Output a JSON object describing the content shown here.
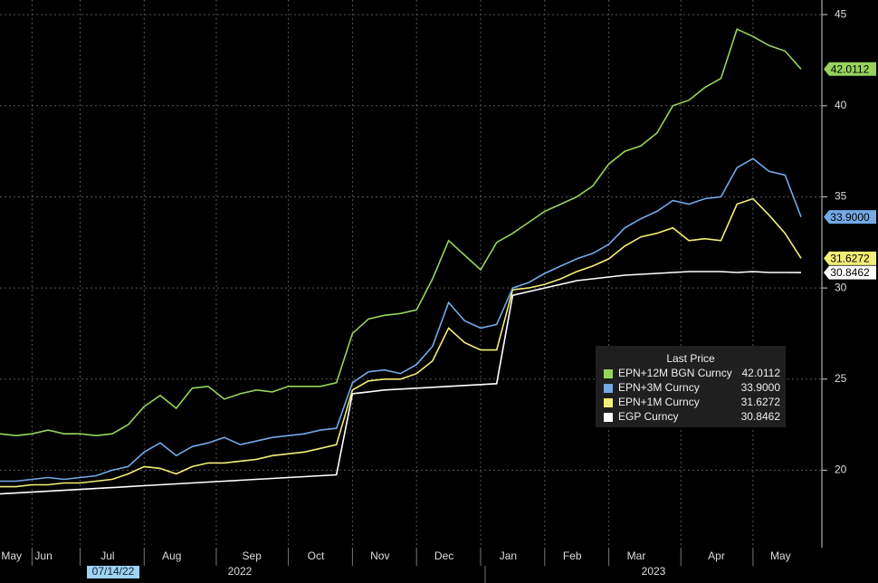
{
  "chart_data": {
    "type": "line",
    "categories": [
      null,
      "May",
      null,
      "Jun",
      null,
      null,
      null,
      "Jul",
      null,
      null,
      null,
      "Aug",
      null,
      null,
      null,
      null,
      "Sep",
      null,
      null,
      null,
      "Oct",
      null,
      null,
      null,
      "Nov",
      null,
      null,
      null,
      "Dec",
      null,
      null,
      null,
      "Jan",
      null,
      null,
      null,
      "Feb",
      null,
      null,
      null,
      "Mar",
      null,
      null,
      null,
      null,
      "Apr",
      null,
      null,
      null,
      "May",
      null
    ],
    "years": [
      "2022",
      "2023"
    ],
    "cursor_label": "07/14/22",
    "series": [
      {
        "name": "EPN+12M BGN Curncy",
        "color": "#97d35c",
        "last_label": "42.0112",
        "values": [
          22.0,
          21.9,
          22.0,
          22.2,
          22.0,
          22.0,
          21.9,
          22.0,
          22.5,
          23.5,
          24.1,
          23.4,
          24.5,
          24.6,
          23.9,
          24.2,
          24.4,
          24.3,
          24.6,
          24.6,
          24.6,
          24.8,
          27.5,
          28.3,
          28.5,
          28.6,
          28.8,
          30.5,
          32.6,
          31.8,
          31.0,
          32.5,
          33.0,
          33.6,
          34.2,
          34.6,
          35.0,
          35.6,
          36.8,
          37.5,
          37.8,
          38.5,
          40.0,
          40.3,
          41.0,
          41.5,
          44.2,
          43.8,
          43.3,
          43.0,
          42.0112
        ]
      },
      {
        "name": "EPN+3M Curncy",
        "color": "#74a9e6",
        "last_label": "33.9000",
        "values": [
          19.4,
          19.4,
          19.5,
          19.6,
          19.5,
          19.6,
          19.7,
          20.0,
          20.2,
          21.0,
          21.5,
          20.8,
          21.3,
          21.5,
          21.8,
          21.4,
          21.6,
          21.8,
          21.9,
          22.0,
          22.2,
          22.3,
          24.8,
          25.4,
          25.5,
          25.3,
          25.8,
          26.8,
          29.2,
          28.2,
          27.8,
          28.0,
          30.0,
          30.3,
          30.8,
          31.2,
          31.6,
          31.9,
          32.4,
          33.3,
          33.8,
          34.2,
          34.8,
          34.6,
          34.9,
          35.0,
          36.6,
          37.1,
          36.4,
          36.2,
          33.9
        ]
      },
      {
        "name": "EPN+1M Curncy",
        "color": "#f4ee78",
        "last_label": "31.6272",
        "values": [
          19.1,
          19.1,
          19.2,
          19.2,
          19.3,
          19.3,
          19.4,
          19.5,
          19.8,
          20.2,
          20.1,
          19.8,
          20.2,
          20.4,
          20.4,
          20.5,
          20.6,
          20.8,
          20.9,
          21.0,
          21.2,
          21.4,
          24.4,
          24.9,
          25.0,
          25.0,
          25.3,
          26.0,
          27.8,
          27.0,
          26.6,
          26.6,
          29.9,
          30.0,
          30.2,
          30.5,
          30.9,
          31.2,
          31.6,
          32.3,
          32.8,
          33.0,
          33.3,
          32.6,
          32.7,
          32.6,
          34.6,
          34.9,
          34.0,
          33.0,
          31.6272
        ]
      },
      {
        "name": "EGP Curncy",
        "color": "#ffffff",
        "last_label": "30.8462",
        "values": [
          18.7,
          18.75,
          18.8,
          18.85,
          18.9,
          18.95,
          19.0,
          19.05,
          19.1,
          19.15,
          19.2,
          19.25,
          19.3,
          19.35,
          19.4,
          19.45,
          19.5,
          19.55,
          19.6,
          19.65,
          19.7,
          19.75,
          24.2,
          24.3,
          24.4,
          24.45,
          24.5,
          24.55,
          24.6,
          24.65,
          24.7,
          24.75,
          29.6,
          29.8,
          30.0,
          30.2,
          30.4,
          30.5,
          30.6,
          30.7,
          30.75,
          30.8,
          30.85,
          30.9,
          30.9,
          30.9,
          30.85,
          30.9,
          30.85,
          30.85,
          30.8462
        ]
      }
    ],
    "ylim": [
      15.75,
      45.8
    ],
    "yticks": [
      20,
      25,
      30,
      35,
      40,
      45
    ],
    "grid": true,
    "legend": {
      "title": "Last Price",
      "position": "center-right"
    }
  }
}
